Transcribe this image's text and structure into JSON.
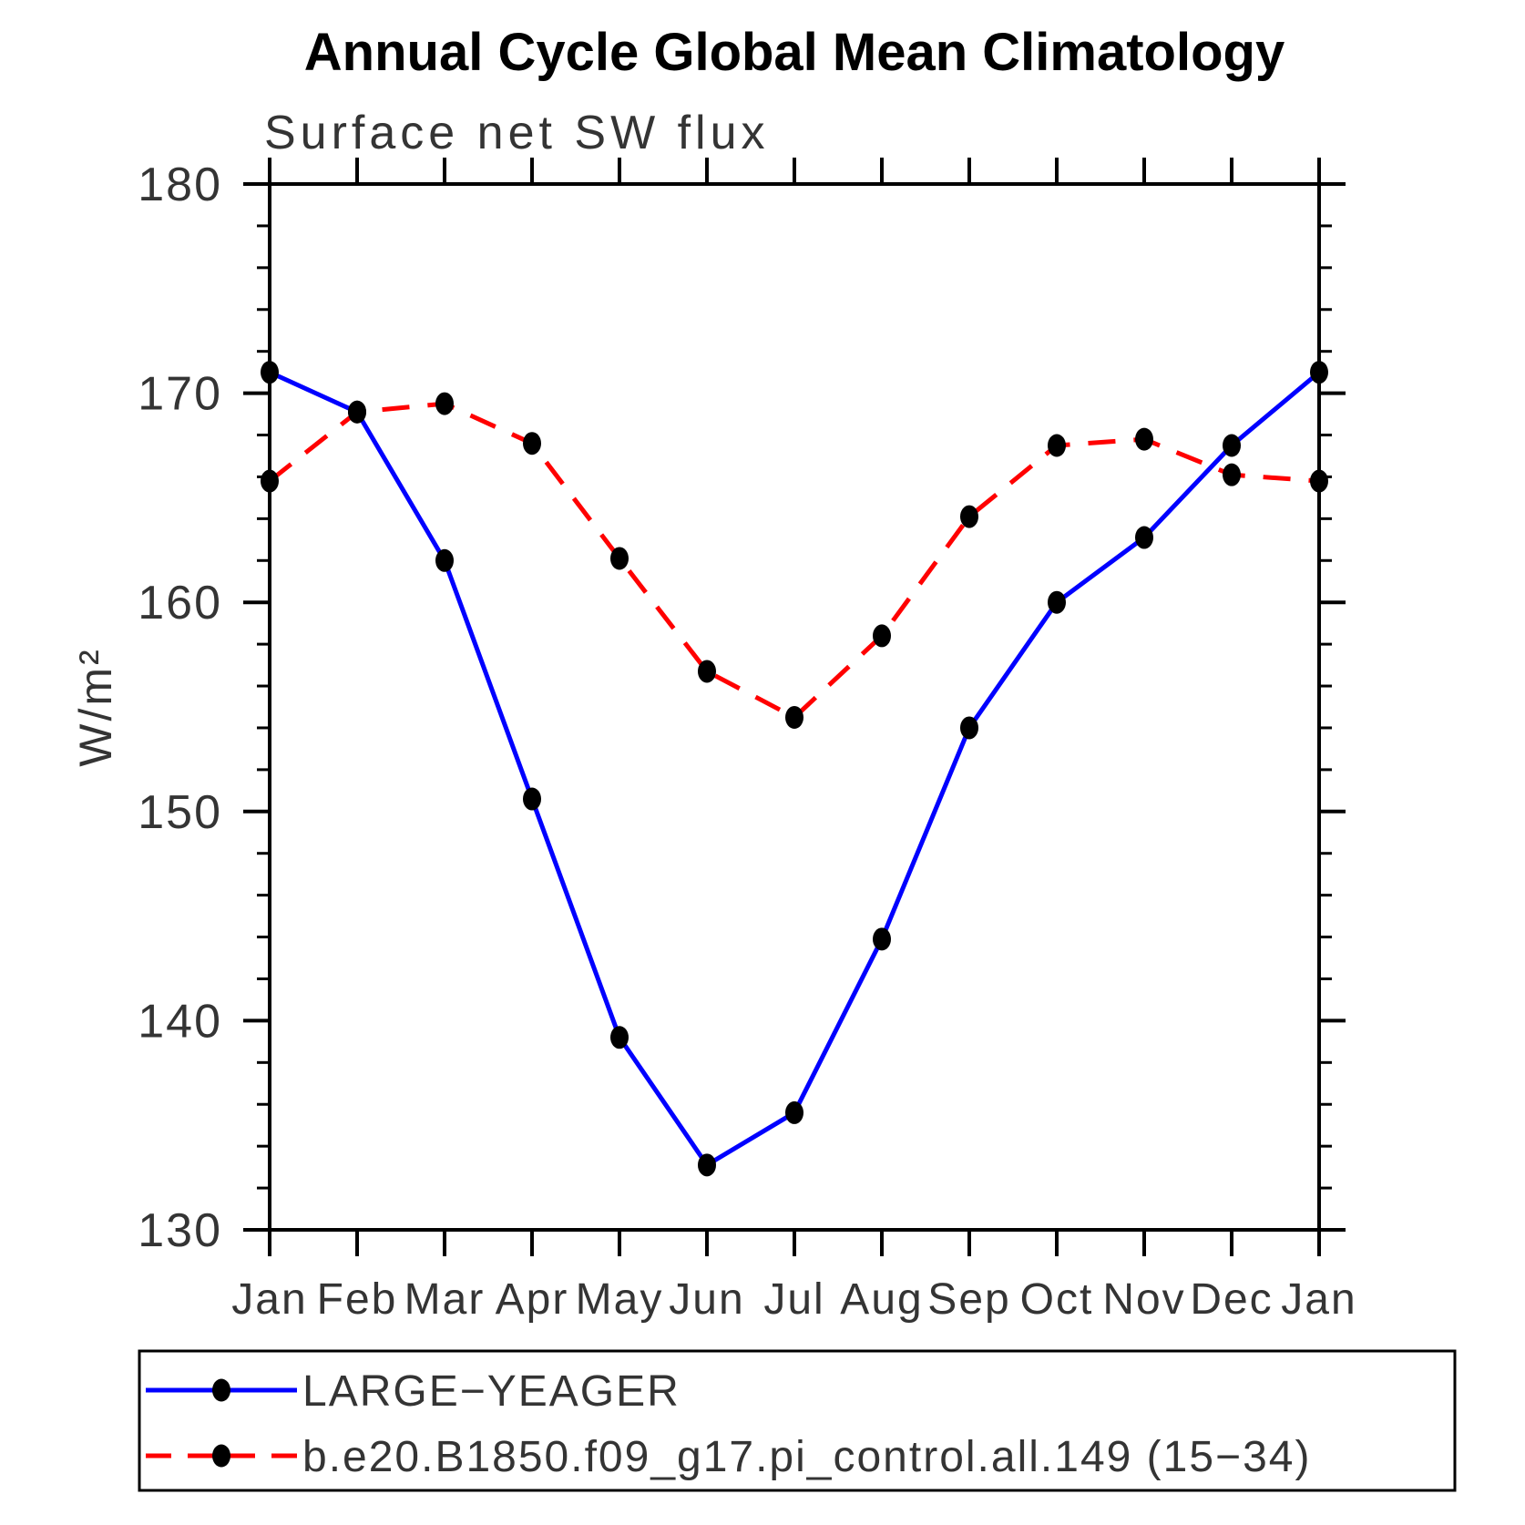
{
  "chart": {
    "title": "Annual Cycle Global Mean Climatology",
    "subtitle": "Surface net SW flux",
    "ylabel": "W/m²"
  },
  "chart_data": {
    "type": "line",
    "title": "Annual Cycle Global Mean Climatology",
    "subtitle": "Surface net SW flux",
    "xlabel": "",
    "ylabel": "W/m²",
    "x_labels": [
      "Jan",
      "Feb",
      "Mar",
      "Apr",
      "May",
      "Jun",
      "Jul",
      "Aug",
      "Sep",
      "Oct",
      "Nov",
      "Dec",
      "Jan"
    ],
    "ylim": [
      130,
      180
    ],
    "y_major_tick_step": 10,
    "y_minor_step": 2,
    "grid": false,
    "legend_position": "bottom-box",
    "axis_color": "#000000",
    "marker_color": "#000000",
    "series": [
      {
        "id": "large-yeager",
        "name": "LARGE-YEAGER",
        "color": "#0000ff",
        "line_style": "solid",
        "marker": "filled-circle",
        "values": [
          171.0,
          169.1,
          162.0,
          150.6,
          139.2,
          133.1,
          135.6,
          143.9,
          154.0,
          160.0,
          163.1,
          167.5,
          171.0
        ]
      },
      {
        "id": "b-e20-b1850-pi-control",
        "name": "b.e20.B1850.f09_g17.pi_control.all.149 (15-34)",
        "color": "#ff0000",
        "line_style": "dashed",
        "marker": "filled-circle",
        "values": [
          165.8,
          169.1,
          169.5,
          167.6,
          162.1,
          156.7,
          154.5,
          158.4,
          164.1,
          167.5,
          167.8,
          166.1,
          165.8
        ]
      }
    ]
  },
  "legend": {
    "entries": [
      {
        "label": "LARGE−YEAGER"
      },
      {
        "label": "b.e20.B1850.f09_g17.pi_control.all.149 (15−34)"
      }
    ]
  }
}
